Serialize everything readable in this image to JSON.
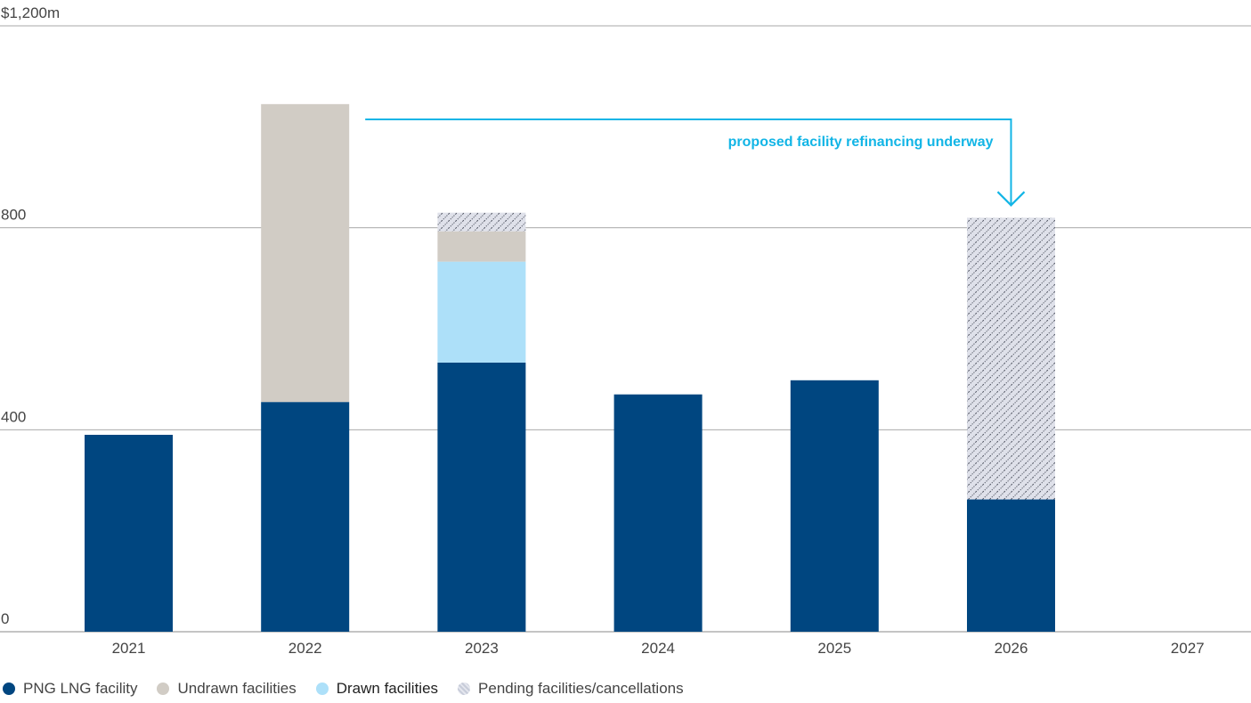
{
  "chart_data": {
    "type": "bar",
    "stacked": true,
    "title": "",
    "xlabel": "",
    "ylabel": "",
    "ylim": [
      0,
      1200
    ],
    "y_ticks": [
      {
        "value": 0,
        "label": "0"
      },
      {
        "value": 400,
        "label": "400"
      },
      {
        "value": 800,
        "label": "800"
      },
      {
        "value": 1200,
        "label": "$1,200m"
      }
    ],
    "categories": [
      "2021",
      "2022",
      "2023",
      "2024",
      "2025",
      "2026",
      "2027"
    ],
    "series": [
      {
        "name": "PNG LNG facility",
        "key": "png",
        "color": "#004680",
        "pattern": "solid",
        "values": [
          390,
          455,
          533,
          470,
          498,
          262,
          0
        ]
      },
      {
        "name": "Drawn facilities",
        "key": "drawn",
        "color": "#ade0f9",
        "pattern": "solid",
        "values": [
          0,
          0,
          200,
          0,
          0,
          0,
          0
        ]
      },
      {
        "name": "Undrawn facilities",
        "key": "undrawn",
        "color": "#d1ccc5",
        "pattern": "solid",
        "values": [
          0,
          590,
          60,
          0,
          0,
          0,
          0
        ]
      },
      {
        "name": "Pending facilities/cancellations",
        "key": "pending",
        "color": "#dfe1ea",
        "pattern": "hatch",
        "values": [
          0,
          0,
          37,
          0,
          0,
          558,
          0
        ]
      }
    ],
    "legend_order": [
      "png",
      "undrawn",
      "drawn",
      "pending"
    ],
    "legend_position": "bottom-left",
    "grid": true,
    "annotation": {
      "text": "proposed facility refinancing underway",
      "from_category": "2022",
      "to_category": "2026",
      "color": "#12b5e6"
    }
  }
}
